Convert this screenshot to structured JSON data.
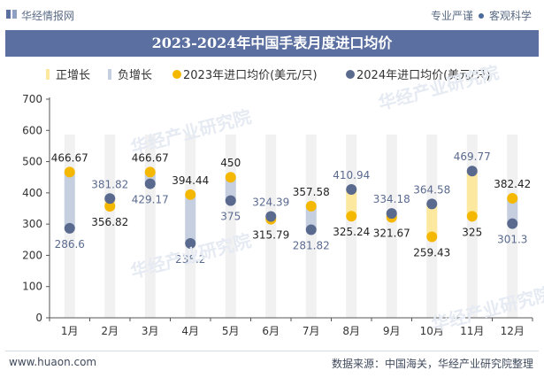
{
  "header": {
    "brand": "华经情报网",
    "slogan_left": "专业严谨",
    "slogan_right": "客观科学"
  },
  "title": "2023-2024年中国手表月度进口均价",
  "footer": {
    "url": "www.huaon.com",
    "source": "数据来源：中国海关，华经产业研究院整理"
  },
  "watermark": "华经产业研究院",
  "colors": {
    "title_bg": "#5b70a0",
    "positive": "#fde8a0",
    "negative": "#c6cfe0",
    "series_2023": "#f5b800",
    "series_2024": "#5a6a8f"
  },
  "chart_data": {
    "type": "line",
    "legend": [
      "正增长",
      "负增长",
      "2023年进口均价(美元/只)",
      "2024年进口均价(美元/只)"
    ],
    "categories": [
      "1月",
      "2月",
      "3月",
      "4月",
      "5月",
      "6月",
      "7月",
      "8月",
      "9月",
      "10月",
      "11月",
      "12月"
    ],
    "series": [
      {
        "name": "2023年进口均价(美元/只)",
        "values": [
          466.67,
          356.82,
          466.67,
          394.44,
          450,
          315.79,
          357.58,
          325.24,
          321.67,
          259.43,
          325,
          382.42
        ]
      },
      {
        "name": "2024年进口均价(美元/只)",
        "values": [
          286.6,
          381.82,
          429.17,
          238.2,
          375,
          324.39,
          281.82,
          410.94,
          334.18,
          364.58,
          469.77,
          301.3
        ]
      }
    ],
    "value_labels": {
      "2023": [
        "466.67",
        "356.82",
        "466.67",
        "394.44",
        "450",
        "315.79",
        "357.58",
        "325.24",
        "321.67",
        "259.43",
        "325",
        "382.42"
      ],
      "2024": [
        "286.6",
        "381.82",
        "429.17",
        "238.2",
        "375",
        "324.39",
        "281.82",
        "410.94",
        "334.18",
        "364.58",
        "469.77",
        "301.3"
      ]
    },
    "ylim": [
      0,
      700
    ],
    "yticks": [
      0,
      100,
      200,
      300,
      400,
      500,
      600,
      700
    ],
    "grid": false,
    "legend_position": "top"
  }
}
